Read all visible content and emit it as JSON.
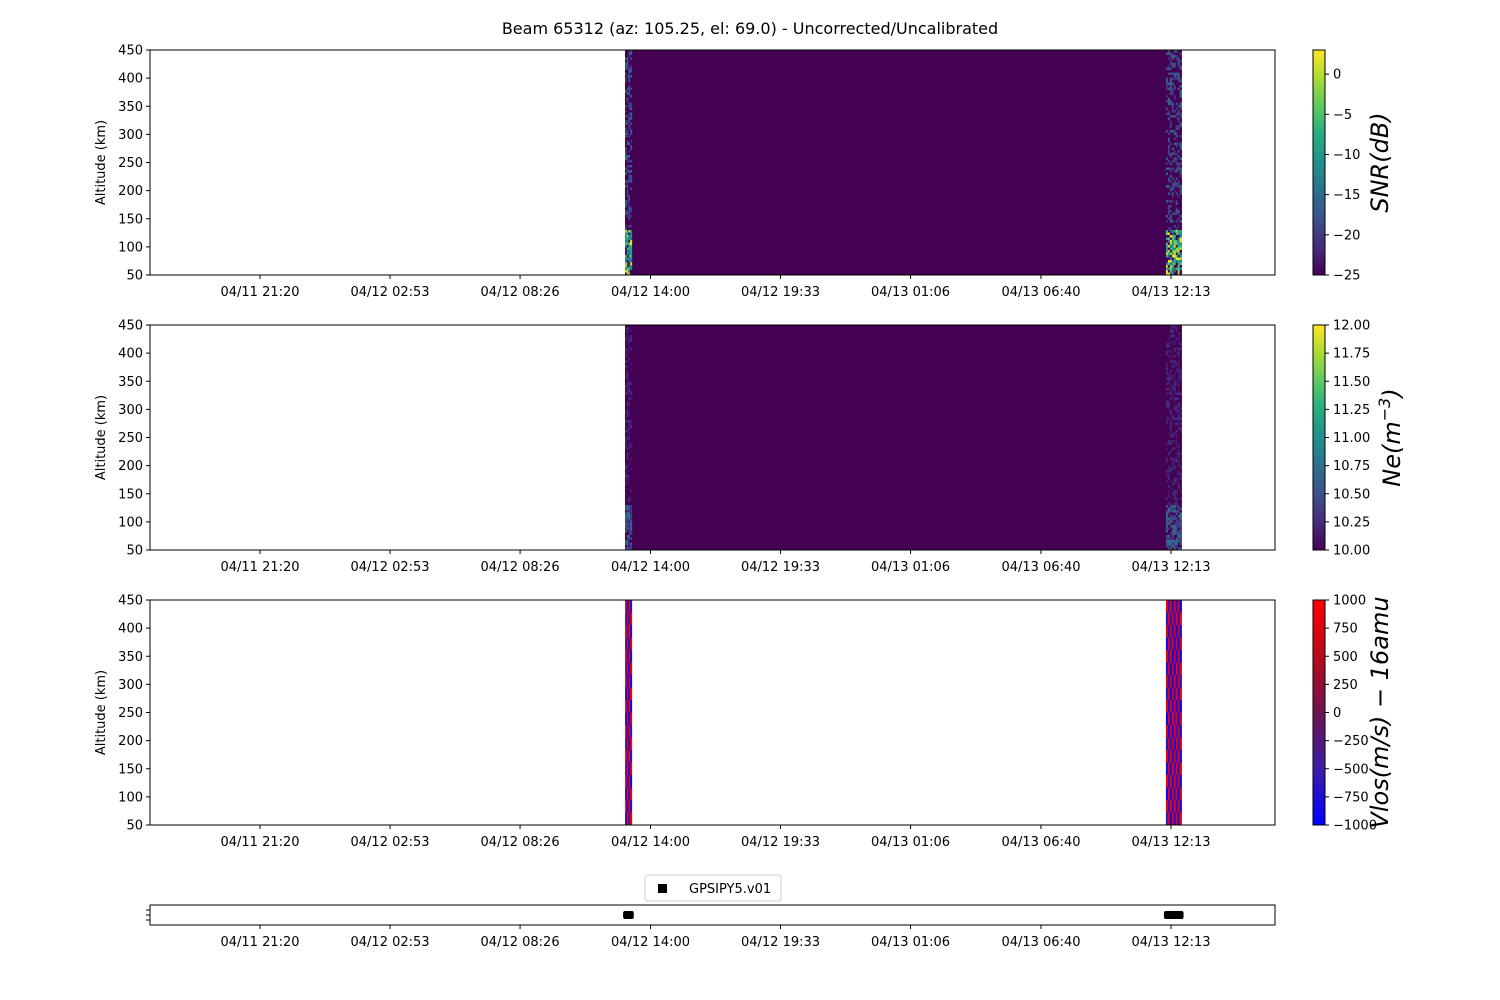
{
  "figure": {
    "title": "Beam 65312 (az: 105.25, el: 69.0) - Uncorrected/Uncalibrated"
  },
  "chart_data": [
    {
      "type": "heatmap",
      "ylabel": "Altitude (km)",
      "ylim": [
        50,
        450
      ],
      "yticks": [
        "50",
        "100",
        "150",
        "200",
        "250",
        "300",
        "350",
        "400",
        "450"
      ],
      "xticks": [
        "04/11 21:20",
        "04/12 02:53",
        "04/12 08:26",
        "04/12 14:00",
        "04/12 19:33",
        "04/13 01:06",
        "04/13 06:40",
        "04/13 12:13"
      ],
      "colorbar": {
        "label": "SNR(dB)",
        "range": [
          -25,
          3
        ],
        "ticks": [
          "0",
          "−5",
          "−10",
          "−15",
          "−20",
          "−25"
        ],
        "colormap": "viridis"
      },
      "data_span": {
        "start": "04/12 12:55",
        "end": "04/13 12:40"
      },
      "noisy_edges": [
        {
          "start": "04/12 12:55",
          "end": "04/12 13:12"
        },
        {
          "start": "04/13 12:00",
          "end": "04/13 12:40"
        }
      ],
      "interior_value": -25,
      "edge_high_alt_km": 130,
      "edge_high_value": 3
    },
    {
      "type": "heatmap",
      "ylabel": "Altitude (km)",
      "ylim": [
        50,
        450
      ],
      "yticks": [
        "50",
        "100",
        "150",
        "200",
        "250",
        "300",
        "350",
        "400",
        "450"
      ],
      "xticks": [
        "04/11 21:20",
        "04/12 02:53",
        "04/12 08:26",
        "04/12 14:00",
        "04/12 19:33",
        "04/13 01:06",
        "04/13 06:40",
        "04/13 12:13"
      ],
      "colorbar": {
        "label": "Ne(m^-3)",
        "label_main": "Ne(m",
        "label_sup": "−3",
        "label_end": ")",
        "range": [
          10.0,
          12.0
        ],
        "ticks": [
          "12.00",
          "11.75",
          "11.50",
          "11.25",
          "11.00",
          "10.75",
          "10.50",
          "10.25",
          "10.00"
        ],
        "colormap": "viridis"
      },
      "data_span": {
        "start": "04/12 12:55",
        "end": "04/13 12:40"
      },
      "noisy_edges": [
        {
          "start": "04/12 12:55",
          "end": "04/12 13:12"
        },
        {
          "start": "04/13 12:00",
          "end": "04/13 12:40"
        }
      ],
      "interior_value": 10.0,
      "edge_high_alt_km": 130,
      "edge_high_value": 10.8
    },
    {
      "type": "heatmap",
      "ylabel": "Altitude (km)",
      "ylim": [
        50,
        450
      ],
      "yticks": [
        "50",
        "100",
        "150",
        "200",
        "250",
        "300",
        "350",
        "400",
        "450"
      ],
      "xticks": [
        "04/11 21:20",
        "04/12 02:53",
        "04/12 08:26",
        "04/12 14:00",
        "04/12 19:33",
        "04/13 01:06",
        "04/13 06:40",
        "04/13 12:13"
      ],
      "colorbar": {
        "label": "Vlos(m/s) − 16amu",
        "range": [
          -1000,
          1000
        ],
        "ticks": [
          "1000",
          "750",
          "500",
          "250",
          "0",
          "−250",
          "−500",
          "−750",
          "−1000"
        ],
        "colormap": "bwr"
      },
      "data_span": {
        "start": "04/12 12:55",
        "end": "04/13 12:40"
      },
      "noisy_edges": [
        {
          "start": "04/12 12:55",
          "end": "04/12 13:12"
        },
        {
          "start": "04/13 12:00",
          "end": "04/13 12:40"
        }
      ],
      "interior_value": null
    },
    {
      "type": "scatter",
      "legend": [
        "GPSIPY5.v01"
      ],
      "legend_placement": "top-center",
      "xticks": [
        "04/11 21:20",
        "04/12 02:53",
        "04/12 08:26",
        "04/12 14:00",
        "04/12 19:33",
        "04/13 01:06",
        "04/13 06:40",
        "04/13 12:13"
      ],
      "segments": [
        {
          "name": "GPSIPY5.v01",
          "start": "04/12 12:55",
          "end": "04/12 13:12"
        },
        {
          "name": "GPSIPY5.v01",
          "start": "04/13 12:00",
          "end": "04/13 12:40"
        }
      ]
    }
  ]
}
